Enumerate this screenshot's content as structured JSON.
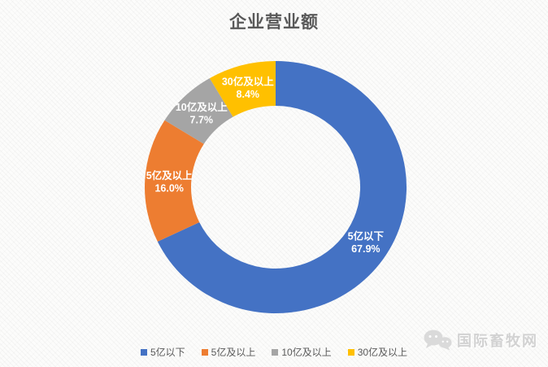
{
  "title": "企业营业额",
  "chart_data": {
    "type": "pie",
    "subtype": "donut",
    "title": "企业营业额",
    "categories": [
      "5亿以下",
      "5亿及以上",
      "10亿及以上",
      "30亿及以上"
    ],
    "values": [
      67.9,
      16.0,
      7.7,
      8.4
    ],
    "value_labels": [
      "67.9%",
      "16.0%",
      "7.7%",
      "8.4%"
    ],
    "colors": [
      "#4472C4",
      "#ED7D31",
      "#A5A5A5",
      "#FFC000"
    ],
    "start_angle_deg": 0,
    "direction": "clockwise",
    "hole_ratio": 0.65,
    "legend_position": "bottom",
    "data_label_color": "#FFFFFF"
  },
  "legend": {
    "items": [
      {
        "label": "5亿以下",
        "color": "#4472C4"
      },
      {
        "label": "5亿及以上",
        "color": "#ED7D31"
      },
      {
        "label": "10亿及以上",
        "color": "#A5A5A5"
      },
      {
        "label": "30亿及以上",
        "color": "#FFC000"
      }
    ]
  },
  "watermark": {
    "text": "国际畜牧网",
    "icon": "wechat-icon"
  },
  "ui_colors": {
    "title_text": "#595959",
    "legend_text": "#595959",
    "background": "#FCFCFB"
  }
}
